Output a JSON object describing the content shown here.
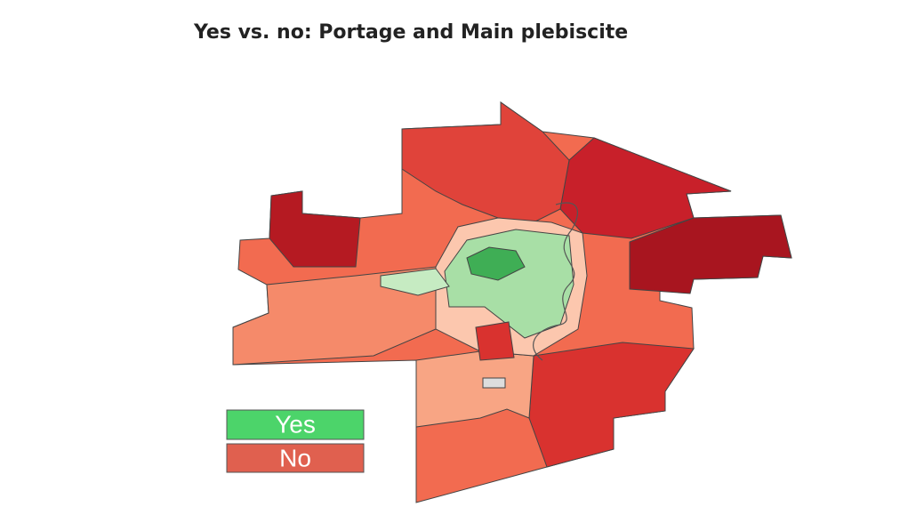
{
  "header": {
    "title": "Yes vs. no: Portage and Main plebiscite"
  },
  "legend": [
    {
      "label": "Yes",
      "color": "#4cd46a"
    },
    {
      "label": "No",
      "color": "#e0604f"
    }
  ]
}
